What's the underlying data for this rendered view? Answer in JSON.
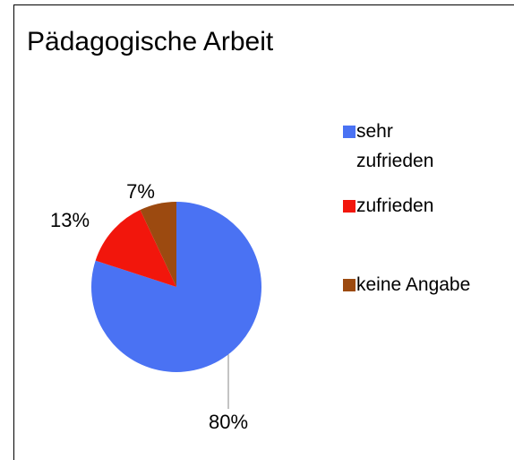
{
  "chart_data": {
    "type": "pie",
    "title": "Pädagogische Arbeit",
    "categories": [
      "sehr zufrieden",
      "zufrieden",
      "keine Angabe"
    ],
    "values": [
      80,
      13,
      7
    ],
    "value_labels": [
      "80%",
      "13%",
      "7%"
    ],
    "colors": [
      "#4a72f3",
      "#f2160c",
      "#9c4a10"
    ],
    "legend": "right"
  }
}
